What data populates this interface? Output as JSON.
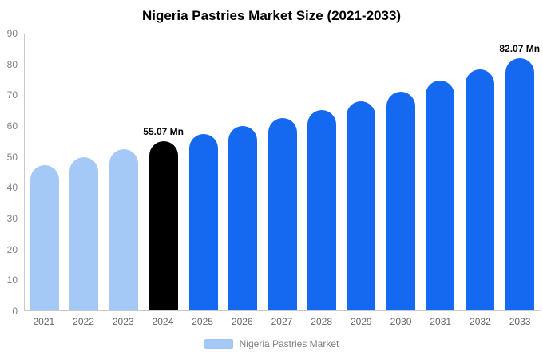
{
  "chart_data": {
    "type": "bar",
    "title": "Nigeria Pastries Market Size (2021-2033)",
    "xlabel": "",
    "ylabel": "",
    "ylim": [
      0,
      90
    ],
    "yticks": [
      0,
      10,
      20,
      30,
      40,
      50,
      60,
      70,
      80,
      90
    ],
    "grid": false,
    "legend_position": "bottom",
    "categories": [
      "2021",
      "2022",
      "2023",
      "2024",
      "2025",
      "2026",
      "2027",
      "2028",
      "2029",
      "2030",
      "2031",
      "2032",
      "2033"
    ],
    "values": [
      47.2,
      49.7,
      52.3,
      55.07,
      57.4,
      60.0,
      62.5,
      65.1,
      68.0,
      71.2,
      74.8,
      78.3,
      82.07
    ],
    "annotations": [
      "",
      "",
      "",
      "55.07 Mn",
      "",
      "",
      "",
      "",
      "",
      "",
      "",
      "",
      "82.07 Mn"
    ],
    "colors": [
      "#a4c9f6",
      "#a4c9f6",
      "#a4c9f6",
      "#000000",
      "#1569f0",
      "#1569f0",
      "#1569f0",
      "#1569f0",
      "#1569f0",
      "#1569f0",
      "#1569f0",
      "#1569f0",
      "#1569f0"
    ],
    "color_roles": {
      "historical": "#a4c9f6",
      "base_year": "#000000",
      "forecast": "#1569f0"
    }
  },
  "legend": {
    "label": "Nigeria Pastries Market",
    "swatch_color": "#a4c9f6"
  }
}
